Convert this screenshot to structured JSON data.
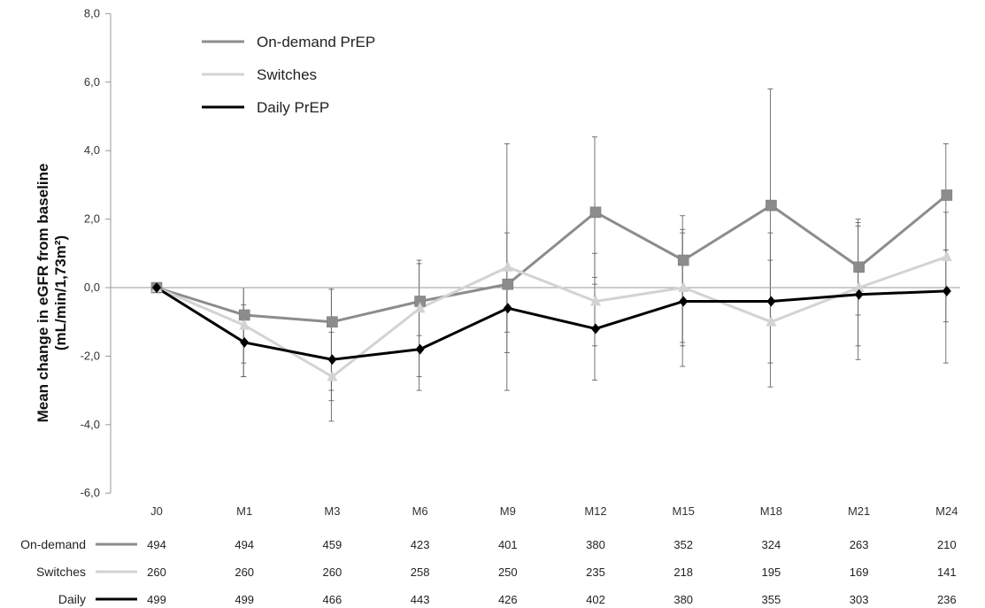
{
  "chart_data": {
    "type": "line",
    "title": "",
    "xlabel": "",
    "ylabel": "Mean change in eGFR from baseline",
    "ylabel_line2": "(mL/min/1,73m²)",
    "categories": [
      "J0",
      "M1",
      "M3",
      "M6",
      "M9",
      "M12",
      "M15",
      "M18",
      "M21",
      "M24"
    ],
    "ylim": [
      -6,
      8
    ],
    "yticks": [
      -6,
      -4,
      -2,
      0,
      2,
      4,
      6,
      8
    ],
    "ytick_labels": [
      "-6,0",
      "-4,0",
      "-2,0",
      "0,0",
      "2,0",
      "4,0",
      "6,0",
      "8,0"
    ],
    "grid": false,
    "legend_position": "top-left",
    "series": [
      {
        "name": "On-demand PrEP",
        "table_label": "On-demand",
        "color": "#8c8c8c",
        "marker": "square",
        "values": [
          0,
          -0.8,
          -1.0,
          -0.4,
          0.1,
          2.2,
          0.8,
          2.4,
          0.6,
          2.7
        ],
        "error_low": [
          0,
          -2.2,
          -3.3,
          -1.4,
          -1.9,
          0.1,
          -1.6,
          -1.0,
          -0.8,
          1.1
        ],
        "error_high": [
          0,
          0,
          -0.05,
          0.8,
          1.6,
          4.4,
          2.1,
          5.8,
          2.0,
          4.2
        ],
        "n_at_risk": [
          494,
          494,
          459,
          423,
          401,
          380,
          352,
          324,
          263,
          210
        ]
      },
      {
        "name": "Switches",
        "table_label": "Switches",
        "color": "#d3d3d3",
        "marker": "triangle",
        "values": [
          0,
          -1.1,
          -2.6,
          -0.6,
          0.6,
          -0.4,
          0.0,
          -1.0,
          0.0,
          0.9
        ],
        "error_low": [
          0,
          -2.6,
          -3.9,
          -2.6,
          -3.0,
          -2.7,
          -2.3,
          -2.9,
          -2.1,
          -2.2
        ],
        "error_high": [
          0,
          0,
          0,
          0.7,
          4.2,
          1.0,
          1.7,
          1.6,
          1.9,
          2.2
        ],
        "n_at_risk": [
          260,
          260,
          260,
          258,
          250,
          235,
          218,
          195,
          169,
          141
        ]
      },
      {
        "name": "Daily PrEP",
        "table_label": "Daily",
        "color": "#000000",
        "marker": "diamond",
        "values": [
          0,
          -1.6,
          -2.1,
          -1.8,
          -0.6,
          -1.2,
          -0.4,
          -0.4,
          -0.2,
          -0.1
        ],
        "error_low": [
          0,
          -2.6,
          -3.0,
          -3.0,
          -1.3,
          -1.7,
          -1.7,
          -2.2,
          -1.7,
          -1.0
        ],
        "error_high": [
          0,
          -0.5,
          -1.3,
          -0.7,
          0.2,
          0.3,
          1.6,
          0.8,
          1.8,
          1.1
        ],
        "n_at_risk": [
          499,
          499,
          466,
          443,
          426,
          402,
          380,
          355,
          303,
          236
        ]
      }
    ]
  }
}
